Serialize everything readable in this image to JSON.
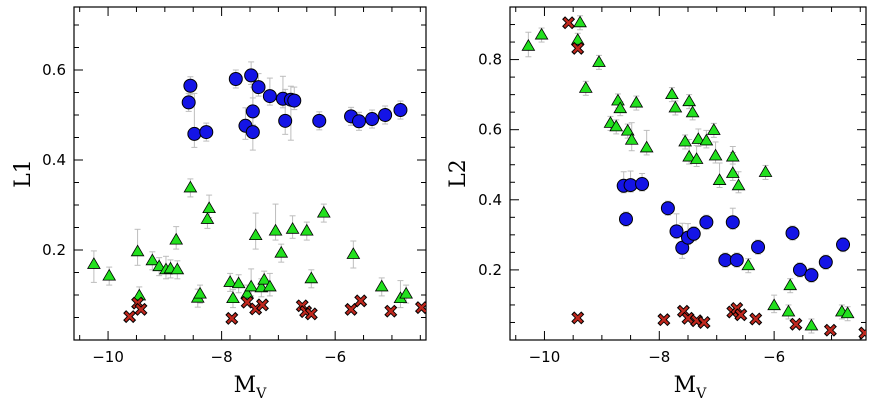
{
  "colors": {
    "circle": "#1414e6",
    "triangle": "#22e01e",
    "cross": "#c0281e",
    "errorbar": "#bdbdbd"
  },
  "chart_data": [
    {
      "type": "scatter",
      "id": "left",
      "xlabel": "M",
      "xlabel_sub": "V",
      "ylabel": "L1",
      "xlim": [
        -10.6,
        -4.4
      ],
      "ylim": [
        0.0,
        0.74
      ],
      "xticks": [
        -10,
        -8,
        -6
      ],
      "xtick_labels": [
        "−10",
        "−8",
        "−6"
      ],
      "yticks": [
        0.2,
        0.4,
        0.6
      ],
      "ytick_labels": [
        "0.2",
        "0.4",
        "0.6"
      ],
      "series": [
        {
          "name": "circles",
          "marker": "circle",
          "points": [
            [
              -8.55,
              0.565,
              0.02,
              0.02
            ],
            [
              -8.58,
              0.528,
              0.02,
              0.02
            ],
            [
              -8.48,
              0.458,
              0.03,
              0.09
            ],
            [
              -8.27,
              0.462,
              0.02,
              0.02
            ],
            [
              -7.75,
              0.58,
              0.02,
              0.02
            ],
            [
              -7.58,
              0.476,
              0.03,
              0.04
            ],
            [
              -7.48,
              0.588,
              0.02,
              0.03
            ],
            [
              -7.45,
              0.462,
              0.04,
              0.1
            ],
            [
              -7.45,
              0.508,
              0.03,
              0.03
            ],
            [
              -7.35,
              0.562,
              0.02,
              0.03
            ],
            [
              -7.15,
              0.542,
              0.02,
              0.04
            ],
            [
              -6.92,
              0.536,
              0.02,
              0.05
            ],
            [
              -6.88,
              0.487,
              0.03,
              0.07
            ],
            [
              -6.78,
              0.534,
              0.09,
              0.03
            ],
            [
              -6.72,
              0.532,
              0.02,
              0.03
            ],
            [
              -6.28,
              0.487,
              0.02,
              0.02
            ],
            [
              -5.72,
              0.497,
              0.02,
              0.02
            ],
            [
              -5.58,
              0.486,
              0.02,
              0.02
            ],
            [
              -5.35,
              0.491,
              0.02,
              0.02
            ],
            [
              -5.12,
              0.5,
              0.02,
              0.02
            ],
            [
              -4.85,
              0.511,
              0.02,
              0.02
            ]
          ]
        },
        {
          "name": "triangles",
          "marker": "triangle",
          "points": [
            [
              -10.25,
              0.168,
              0.04,
              0.03
            ],
            [
              -9.98,
              0.142,
              0.02,
              0.02
            ],
            [
              -9.48,
              0.196,
              0.03,
              0.05
            ],
            [
              -9.45,
              0.098,
              0.02,
              0.02
            ],
            [
              -9.22,
              0.176,
              0.02,
              0.02
            ],
            [
              -9.1,
              0.163,
              0.02,
              0.02
            ],
            [
              -8.98,
              0.156,
              0.02,
              0.03
            ],
            [
              -8.9,
              0.158,
              0.02,
              0.02
            ],
            [
              -8.8,
              0.222,
              0.02,
              0.03
            ],
            [
              -8.78,
              0.156,
              0.02,
              0.02
            ],
            [
              -8.55,
              0.338,
              0.02,
              0.02
            ],
            [
              -8.42,
              0.093,
              0.02,
              0.02
            ],
            [
              -8.38,
              0.102,
              0.02,
              0.02
            ],
            [
              -8.25,
              0.268,
              0.02,
              0.02
            ],
            [
              -8.22,
              0.292,
              0.02,
              0.03
            ],
            [
              -7.85,
              0.128,
              0.02,
              0.02
            ],
            [
              -7.8,
              0.092,
              0.02,
              0.02
            ],
            [
              -7.7,
              0.125,
              0.02,
              0.02
            ],
            [
              -7.55,
              0.102,
              0.02,
              0.02
            ],
            [
              -7.48,
              0.118,
              0.02,
              0.04
            ],
            [
              -7.4,
              0.232,
              0.03,
              0.05
            ],
            [
              -7.3,
              0.116,
              0.02,
              0.02
            ],
            [
              -7.25,
              0.133,
              0.02,
              0.02
            ],
            [
              -7.15,
              0.118,
              0.02,
              0.03
            ],
            [
              -7.05,
              0.242,
              0.02,
              0.06
            ],
            [
              -6.95,
              0.193,
              0.02,
              0.02
            ],
            [
              -6.75,
              0.246,
              0.02,
              0.03
            ],
            [
              -6.5,
              0.242,
              0.02,
              0.02
            ],
            [
              -6.42,
              0.136,
              0.02,
              0.02
            ],
            [
              -6.2,
              0.282,
              0.02,
              0.02
            ],
            [
              -5.68,
              0.19,
              0.03,
              0.03
            ],
            [
              -5.18,
              0.118,
              0.02,
              0.02
            ],
            [
              -4.85,
              0.092,
              0.02,
              0.04
            ],
            [
              -4.75,
              0.102,
              0.02,
              0.02
            ]
          ]
        },
        {
          "name": "crosses",
          "marker": "cross",
          "points": [
            [
              -9.62,
              0.052
            ],
            [
              -9.48,
              0.082
            ],
            [
              -9.42,
              0.068
            ],
            [
              -7.82,
              0.048
            ],
            [
              -7.55,
              0.084
            ],
            [
              -7.4,
              0.069
            ],
            [
              -7.28,
              0.078
            ],
            [
              -6.58,
              0.076
            ],
            [
              -6.52,
              0.063
            ],
            [
              -6.42,
              0.058
            ],
            [
              -5.72,
              0.068
            ],
            [
              -5.55,
              0.087
            ],
            [
              -5.02,
              0.064
            ],
            [
              -4.48,
              0.072
            ]
          ]
        }
      ]
    },
    {
      "type": "scatter",
      "id": "right",
      "xlabel": "M",
      "xlabel_sub": "V",
      "ylabel": "L2",
      "xlim": [
        -10.6,
        -4.4
      ],
      "ylim": [
        0.0,
        0.95
      ],
      "xticks": [
        -10,
        -8,
        -6
      ],
      "xtick_labels": [
        "−10",
        "−8",
        "−6"
      ],
      "yticks": [
        0.2,
        0.4,
        0.6,
        0.8
      ],
      "ytick_labels": [
        "0.2",
        "0.4",
        "0.6",
        "0.8"
      ],
      "series": [
        {
          "name": "circles",
          "marker": "circle",
          "points": [
            [
              -8.62,
              0.44,
              0.02,
              0.04
            ],
            [
              -8.5,
              0.442,
              0.02,
              0.04
            ],
            [
              -8.3,
              0.445,
              0.02,
              0.03
            ],
            [
              -8.58,
              0.345,
              0.02,
              0.02
            ],
            [
              -7.85,
              0.376,
              0.02,
              0.02
            ],
            [
              -7.7,
              0.31,
              0.02,
              0.05
            ],
            [
              -7.6,
              0.263,
              0.03,
              0.07
            ],
            [
              -7.5,
              0.292,
              0.02,
              0.04
            ],
            [
              -7.4,
              0.303,
              0.02,
              0.02
            ],
            [
              -7.18,
              0.336,
              0.02,
              0.02
            ],
            [
              -6.72,
              0.336,
              0.02,
              0.04
            ],
            [
              -6.85,
              0.228,
              0.02,
              0.02
            ],
            [
              -6.65,
              0.228,
              0.02,
              0.02
            ],
            [
              -6.28,
              0.265,
              0.02,
              0.02
            ],
            [
              -5.68,
              0.305,
              0.02,
              0.02
            ],
            [
              -5.55,
              0.2,
              0.02,
              0.02
            ],
            [
              -5.35,
              0.185,
              0.02,
              0.02
            ],
            [
              -5.1,
              0.222,
              0.02,
              0.02
            ],
            [
              -4.8,
              0.272,
              0.02,
              0.02
            ]
          ]
        },
        {
          "name": "triangles",
          "marker": "triangle",
          "points": [
            [
              -10.28,
              0.838,
              0.03,
              0.04
            ],
            [
              -10.05,
              0.87,
              0.02,
              0.02
            ],
            [
              -9.38,
              0.905,
              0.02,
              0.02
            ],
            [
              -9.42,
              0.855,
              0.02,
              0.02
            ],
            [
              -9.05,
              0.792,
              0.02,
              0.02
            ],
            [
              -9.28,
              0.718,
              0.02,
              0.02
            ],
            [
              -8.85,
              0.618,
              0.02,
              0.02
            ],
            [
              -8.72,
              0.682,
              0.02,
              0.02
            ],
            [
              -8.68,
              0.66,
              0.02,
              0.02
            ],
            [
              -8.75,
              0.608,
              0.02,
              0.02
            ],
            [
              -8.55,
              0.596,
              0.02,
              0.02
            ],
            [
              -8.48,
              0.57,
              0.03,
              0.05
            ],
            [
              -8.4,
              0.676,
              0.02,
              0.02
            ],
            [
              -8.22,
              0.548,
              0.02,
              0.05
            ],
            [
              -7.78,
              0.7,
              0.02,
              0.02
            ],
            [
              -7.72,
              0.662,
              0.02,
              0.02
            ],
            [
              -7.48,
              0.68,
              0.02,
              0.02
            ],
            [
              -7.42,
              0.648,
              0.02,
              0.02
            ],
            [
              -7.32,
              0.572,
              0.02,
              0.03
            ],
            [
              -7.55,
              0.565,
              0.02,
              0.02
            ],
            [
              -7.48,
              0.522,
              0.02,
              0.05
            ],
            [
              -7.35,
              0.515,
              0.02,
              0.04
            ],
            [
              -7.18,
              0.568,
              0.02,
              0.03
            ],
            [
              -7.05,
              0.598,
              0.02,
              0.02
            ],
            [
              -7.02,
              0.525,
              0.02,
              0.04
            ],
            [
              -6.95,
              0.455,
              0.02,
              0.05
            ],
            [
              -6.72,
              0.522,
              0.02,
              0.03
            ],
            [
              -6.72,
              0.475,
              0.02,
              0.06
            ],
            [
              -6.62,
              0.44,
              0.02,
              0.04
            ],
            [
              -6.45,
              0.212,
              0.02,
              0.02
            ],
            [
              -6.15,
              0.478,
              0.02,
              0.02
            ],
            [
              -6.0,
              0.098,
              0.02,
              0.03
            ],
            [
              -5.72,
              0.155,
              0.02,
              0.02
            ],
            [
              -5.75,
              0.08,
              0.02,
              0.02
            ],
            [
              -5.35,
              0.04,
              0.02,
              0.02
            ],
            [
              -4.82,
              0.08,
              0.02,
              0.02
            ],
            [
              -4.72,
              0.075,
              0.02,
              0.02
            ]
          ]
        },
        {
          "name": "crosses",
          "marker": "cross",
          "points": [
            [
              -9.58,
              0.905
            ],
            [
              -9.42,
              0.832
            ],
            [
              -9.42,
              0.063
            ],
            [
              -7.92,
              0.058
            ],
            [
              -7.58,
              0.082
            ],
            [
              -7.5,
              0.062
            ],
            [
              -7.35,
              0.055
            ],
            [
              -7.22,
              0.05
            ],
            [
              -6.72,
              0.08
            ],
            [
              -6.65,
              0.09
            ],
            [
              -6.58,
              0.072
            ],
            [
              -6.32,
              0.06
            ],
            [
              -5.62,
              0.045
            ],
            [
              -5.02,
              0.028
            ],
            [
              -4.42,
              0.02
            ]
          ]
        }
      ]
    }
  ]
}
